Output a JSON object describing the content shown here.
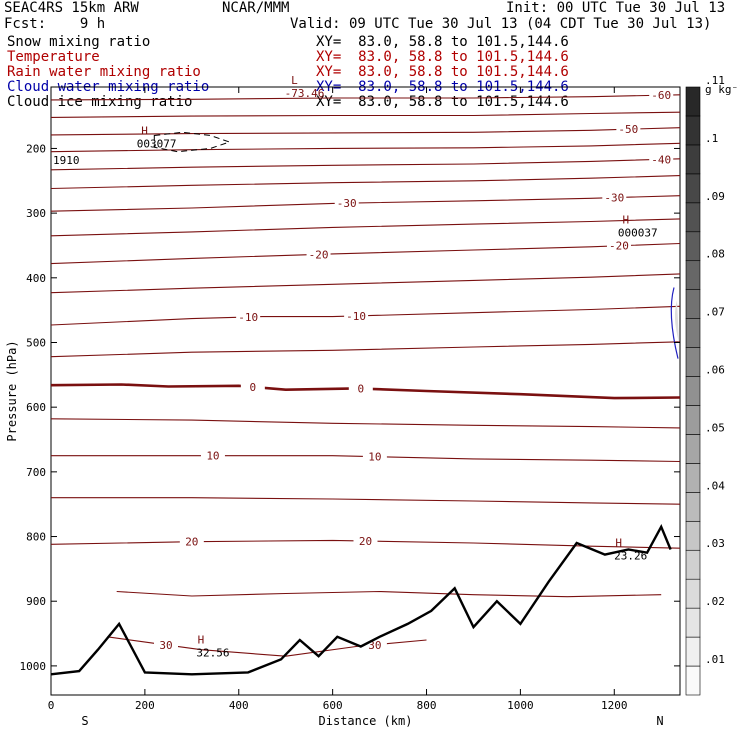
{
  "header": {
    "model": "SEAC4RS 15km ARW",
    "center": "NCAR/MMM",
    "init": "Init: 00 UTC Tue 30 Jul 13",
    "fcst": "Fcst:    9 h",
    "valid": "Valid: 09 UTC Tue 30 Jul 13 (04 CDT Tue 30 Jul 13)"
  },
  "fields": [
    {
      "name": "Snow mixing ratio",
      "xy": "XY=  83.0, 58.8 to 101.5,144.6",
      "color": "#000000"
    },
    {
      "name": "Temperature",
      "xy": "XY=  83.0, 58.8 to 101.5,144.6",
      "color": "#b00000"
    },
    {
      "name": "Rain water mixing ratio",
      "xy": "XY=  83.0, 58.8 to 101.5,144.6",
      "color": "#b00000"
    },
    {
      "name": "Cloud water mixing ratio",
      "xy": "XY=  83.0, 58.8 to 101.5,144.6",
      "color": "#0000aa"
    },
    {
      "name": "Cloud ice mixing ratio",
      "xy": "XY=  83.0, 58.8 to 101.5,144.6",
      "color": "#000000"
    }
  ],
  "colors": {
    "temperature": "#7a1010",
    "freezing": "#7a1010",
    "terrain": "#000000",
    "cloud_water": "#2020c0"
  },
  "chart_data": {
    "type": "contour",
    "xlabel": "Distance (km)",
    "ylabel": "Pressure (hPa)",
    "x_ticks": [
      0,
      200,
      400,
      600,
      800,
      1000,
      1200
    ],
    "y_ticks": [
      200,
      300,
      400,
      500,
      600,
      700,
      800,
      900,
      1000
    ],
    "xlim": [
      0,
      1340
    ],
    "ylim": [
      1045,
      105
    ],
    "left_end_label": "S",
    "right_end_label": "N",
    "colorbar": {
      "unit": "g kg⁻¹",
      "ticks": [
        ".01",
        ".02",
        ".03",
        ".04",
        ".05",
        ".06",
        ".07",
        ".08",
        ".09",
        ".1",
        ".11"
      ]
    },
    "temperature_contours": [
      {
        "level": -60,
        "points": [
          [
            0,
            125
          ],
          [
            300,
            124
          ],
          [
            600,
            122
          ],
          [
            900,
            122
          ],
          [
            1150,
            120
          ],
          [
            1340,
            117
          ]
        ],
        "labels": [
          [
            1300,
            -60
          ]
        ]
      },
      {
        "level": -55,
        "points": [
          [
            0,
            152
          ],
          [
            300,
            150
          ],
          [
            600,
            149
          ],
          [
            900,
            149
          ],
          [
            1150,
            146
          ],
          [
            1340,
            144
          ]
        ],
        "labels": []
      },
      {
        "level": -50,
        "points": [
          [
            0,
            179
          ],
          [
            300,
            177
          ],
          [
            600,
            176
          ],
          [
            900,
            175
          ],
          [
            1150,
            172
          ],
          [
            1340,
            168
          ]
        ],
        "labels": [
          [
            1230,
            -50
          ]
        ]
      },
      {
        "level": -45,
        "points": [
          [
            0,
            205
          ],
          [
            300,
            202
          ],
          [
            600,
            200
          ],
          [
            900,
            199
          ],
          [
            1150,
            196
          ],
          [
            1340,
            192
          ]
        ],
        "labels": []
      },
      {
        "level": -40,
        "points": [
          [
            0,
            233
          ],
          [
            300,
            229
          ],
          [
            600,
            226
          ],
          [
            900,
            224
          ],
          [
            1150,
            220
          ],
          [
            1340,
            216
          ]
        ],
        "labels": [
          [
            1300,
            -40
          ]
        ]
      },
      {
        "level": -35,
        "points": [
          [
            0,
            262
          ],
          [
            300,
            257
          ],
          [
            600,
            253
          ],
          [
            900,
            250
          ],
          [
            1150,
            246
          ],
          [
            1340,
            242
          ]
        ],
        "labels": []
      },
      {
        "level": -30,
        "points": [
          [
            0,
            297
          ],
          [
            300,
            292
          ],
          [
            600,
            285
          ],
          [
            900,
            281
          ],
          [
            1150,
            277
          ],
          [
            1340,
            273
          ]
        ],
        "labels": [
          [
            630,
            -30
          ],
          [
            1200,
            -30
          ]
        ]
      },
      {
        "level": -25,
        "points": [
          [
            0,
            335
          ],
          [
            300,
            329
          ],
          [
            600,
            322
          ],
          [
            900,
            317
          ],
          [
            1150,
            313
          ],
          [
            1340,
            309
          ]
        ],
        "labels": []
      },
      {
        "level": -20,
        "points": [
          [
            0,
            378
          ],
          [
            300,
            370
          ],
          [
            600,
            363
          ],
          [
            900,
            357
          ],
          [
            1150,
            352
          ],
          [
            1340,
            347
          ]
        ],
        "labels": [
          [
            570,
            -20
          ],
          [
            1210,
            -20
          ]
        ]
      },
      {
        "level": -15,
        "points": [
          [
            0,
            423
          ],
          [
            300,
            416
          ],
          [
            600,
            410
          ],
          [
            900,
            404
          ],
          [
            1150,
            399
          ],
          [
            1340,
            394
          ]
        ],
        "labels": []
      },
      {
        "level": -10,
        "points": [
          [
            0,
            473
          ],
          [
            300,
            463
          ],
          [
            450,
            460
          ],
          [
            600,
            460
          ],
          [
            900,
            454
          ],
          [
            1150,
            449
          ],
          [
            1340,
            444
          ]
        ],
        "labels": [
          [
            420,
            -10
          ],
          [
            650,
            -10
          ]
        ]
      },
      {
        "level": -5,
        "points": [
          [
            0,
            522
          ],
          [
            300,
            515
          ],
          [
            600,
            512
          ],
          [
            900,
            507
          ],
          [
            1150,
            503
          ],
          [
            1340,
            499
          ]
        ],
        "labels": []
      },
      {
        "level": 0,
        "points": [
          [
            0,
            566
          ],
          [
            150,
            565
          ],
          [
            250,
            568
          ],
          [
            400,
            567
          ],
          [
            500,
            573
          ],
          [
            650,
            571
          ],
          [
            800,
            575
          ],
          [
            1000,
            580
          ],
          [
            1200,
            586
          ],
          [
            1340,
            585
          ]
        ],
        "labels": [
          [
            430,
            0
          ],
          [
            660,
            0
          ]
        ],
        "bold": true
      },
      {
        "level": 5,
        "points": [
          [
            0,
            618
          ],
          [
            300,
            620
          ],
          [
            600,
            625
          ],
          [
            900,
            628
          ],
          [
            1150,
            630
          ],
          [
            1340,
            632
          ]
        ],
        "labels": []
      },
      {
        "level": 10,
        "points": [
          [
            0,
            675
          ],
          [
            300,
            675
          ],
          [
            600,
            675
          ],
          [
            900,
            680
          ],
          [
            1150,
            682
          ],
          [
            1340,
            684
          ]
        ],
        "labels": [
          [
            345,
            10
          ],
          [
            690,
            10
          ]
        ]
      },
      {
        "level": 15,
        "points": [
          [
            0,
            740
          ],
          [
            300,
            740
          ],
          [
            600,
            742
          ],
          [
            900,
            745
          ],
          [
            1150,
            748
          ],
          [
            1340,
            750
          ]
        ],
        "labels": []
      },
      {
        "level": 20,
        "points": [
          [
            0,
            812
          ],
          [
            300,
            808
          ],
          [
            600,
            806
          ],
          [
            900,
            810
          ],
          [
            1150,
            815
          ],
          [
            1340,
            818
          ]
        ],
        "labels": [
          [
            300,
            20
          ],
          [
            670,
            20
          ]
        ]
      },
      {
        "level": 25,
        "points": [
          [
            140,
            885
          ],
          [
            300,
            892
          ],
          [
            500,
            888
          ],
          [
            700,
            885
          ],
          [
            900,
            890
          ],
          [
            1100,
            893
          ],
          [
            1300,
            890
          ]
        ],
        "labels": []
      },
      {
        "level": 30,
        "points": [
          [
            120,
            955
          ],
          [
            220,
            965
          ],
          [
            320,
            975
          ],
          [
            500,
            985
          ],
          [
            650,
            970
          ],
          [
            800,
            960
          ]
        ],
        "labels": [
          [
            245,
            30
          ],
          [
            690,
            30
          ]
        ]
      }
    ],
    "terrain": [
      [
        0,
        1013
      ],
      [
        60,
        1008
      ],
      [
        100,
        975
      ],
      [
        145,
        935
      ],
      [
        200,
        1010
      ],
      [
        300,
        1013
      ],
      [
        420,
        1010
      ],
      [
        490,
        990
      ],
      [
        530,
        960
      ],
      [
        570,
        985
      ],
      [
        610,
        955
      ],
      [
        660,
        970
      ],
      [
        700,
        955
      ],
      [
        760,
        935
      ],
      [
        810,
        915
      ],
      [
        860,
        880
      ],
      [
        900,
        940
      ],
      [
        950,
        900
      ],
      [
        1000,
        935
      ],
      [
        1060,
        870
      ],
      [
        1120,
        810
      ],
      [
        1180,
        828
      ],
      [
        1230,
        820
      ],
      [
        1270,
        825
      ],
      [
        1300,
        785
      ],
      [
        1320,
        820
      ]
    ],
    "snow_contour": [
      [
        220,
        180
      ],
      [
        280,
        175
      ],
      [
        340,
        180
      ],
      [
        380,
        190
      ],
      [
        340,
        200
      ],
      [
        270,
        205
      ],
      [
        220,
        198
      ]
    ],
    "highs": [
      {
        "x": 225,
        "p": 188,
        "value": "003077"
      },
      {
        "x": 1250,
        "p": 325,
        "value": "000037"
      },
      {
        "x": 345,
        "p": 975,
        "value": "32.56"
      },
      {
        "x": 1235,
        "p": 825,
        "value": "23.26"
      }
    ],
    "lows": [
      {
        "x": 540,
        "p": 113,
        "value": "-73.46"
      }
    ],
    "edge_label": {
      "p": 218,
      "value": "1910"
    }
  }
}
